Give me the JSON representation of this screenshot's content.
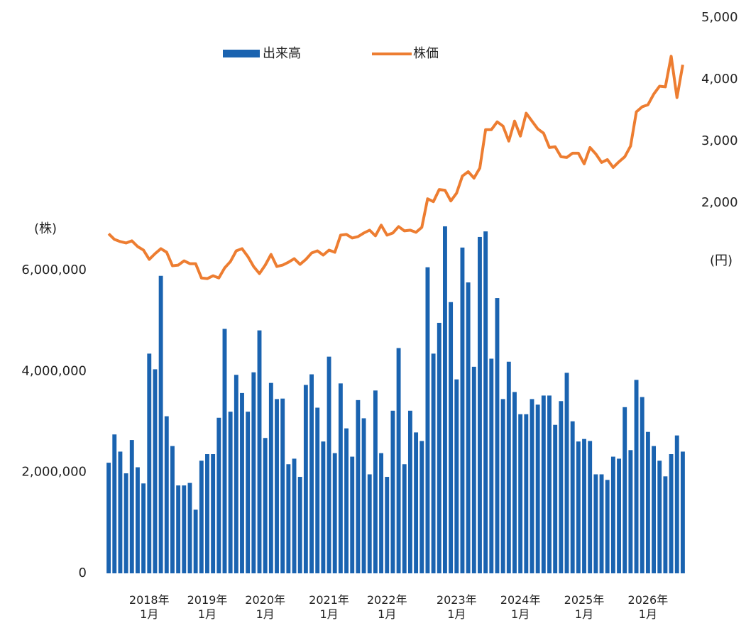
{
  "chart_data": {
    "type": "bar_line",
    "y_label": "(株)",
    "y2_label": "(円)",
    "categories": [
      null,
      null,
      null,
      null,
      null,
      null,
      null,
      "2018年\n1月",
      null,
      null,
      null,
      null,
      null,
      null,
      null,
      null,
      null,
      "2019年\n1月",
      null,
      null,
      null,
      null,
      null,
      null,
      null,
      null,
      null,
      "2020年\n1月",
      null,
      null,
      null,
      null,
      null,
      null,
      null,
      null,
      null,
      null,
      "2021年\n1月",
      null,
      null,
      null,
      null,
      null,
      null,
      null,
      null,
      null,
      "2022年\n1月",
      null,
      null,
      null,
      null,
      null,
      null,
      null,
      null,
      null,
      null,
      null,
      "2023年\n1月",
      null,
      null,
      null,
      null,
      null,
      null,
      null,
      null,
      null,
      null,
      "2024年\n1月",
      null,
      null,
      null,
      null,
      null,
      null,
      null,
      null,
      null,
      null,
      "2025年\n1月",
      null,
      null,
      null,
      null,
      null,
      null,
      null,
      null,
      null,
      null,
      "2026年\n1月",
      null,
      null,
      null,
      null,
      null,
      null
    ],
    "series": [
      {
        "name": "出来高",
        "color": "#1a63b0",
        "kind": "bar",
        "axis": "y",
        "values": [
          2190000,
          2750000,
          2410000,
          1980000,
          2640000,
          2100000,
          1780000,
          4350000,
          4040000,
          5890000,
          3110000,
          2520000,
          1740000,
          1740000,
          1790000,
          1260000,
          2230000,
          2360000,
          2360000,
          3080000,
          4840000,
          3200000,
          3930000,
          3570000,
          3200000,
          3980000,
          4810000,
          2680000,
          3770000,
          3450000,
          3460000,
          2160000,
          2270000,
          1910000,
          3730000,
          3940000,
          3280000,
          2610000,
          4290000,
          2380000,
          3760000,
          2870000,
          2310000,
          3430000,
          3070000,
          1960000,
          3620000,
          2380000,
          1910000,
          3220000,
          4460000,
          2160000,
          3220000,
          2790000,
          2620000,
          6060000,
          4350000,
          4960000,
          6870000,
          5370000,
          3840000,
          6450000,
          5760000,
          4090000,
          6660000,
          6770000,
          4250000,
          5450000,
          3450000,
          4190000,
          3590000,
          3150000,
          3150000,
          3450000,
          3340000,
          3520000,
          3520000,
          2940000,
          3410000,
          3970000,
          3010000,
          2610000,
          2660000,
          2620000,
          1960000,
          1960000,
          1850000,
          2310000,
          2270000,
          3290000,
          2440000,
          3830000,
          3490000,
          2800000,
          2520000,
          2230000,
          1920000,
          2360000,
          2730000,
          2410000
        ]
      },
      {
        "name": "株価",
        "color": "#ed7d31",
        "kind": "line",
        "axis": "y2",
        "values": [
          1501,
          1409,
          1374,
          1351,
          1386,
          1293,
          1236,
          1085,
          1178,
          1259,
          1201,
          982,
          993,
          1062,
          1016,
          1016,
          785,
          774,
          820,
          785,
          947,
          1051,
          1224,
          1259,
          1132,
          970,
          855,
          993,
          1166,
          970,
          993,
          1039,
          1097,
          1005,
          1085,
          1189,
          1224,
          1155,
          1236,
          1201,
          1478,
          1490,
          1432,
          1455,
          1513,
          1559,
          1467,
          1640,
          1478,
          1513,
          1617,
          1547,
          1559,
          1524,
          1605,
          2067,
          2021,
          2217,
          2206,
          2032,
          2159,
          2436,
          2506,
          2402,
          2564,
          3187,
          3187,
          3314,
          3245,
          3002,
          3326,
          3083,
          3453,
          3326,
          3199,
          3129,
          2898,
          2910,
          2748,
          2737,
          2806,
          2806,
          2633,
          2898,
          2794,
          2656,
          2702,
          2575,
          2667,
          2748,
          2922,
          3476,
          3557,
          3591,
          3764,
          3891,
          3880,
          4376,
          3707,
          4238
        ]
      }
    ],
    "ylim": [
      0,
      11000000
    ],
    "yticks": [
      {
        "value": 0,
        "label": "0"
      },
      {
        "value": 2000000,
        "label": "2,000,000"
      },
      {
        "value": 4000000,
        "label": "4,000,000"
      },
      {
        "value": 6000000,
        "label": "6,000,000"
      }
    ],
    "y2lim": [
      -4000,
      5000
    ],
    "y2ticks": [
      {
        "value": 2000,
        "label": "2,000"
      },
      {
        "value": 3000,
        "label": "3,000"
      },
      {
        "value": 4000,
        "label": "4,000"
      },
      {
        "value": 5000,
        "label": "5,000"
      }
    ],
    "legend": "top"
  }
}
